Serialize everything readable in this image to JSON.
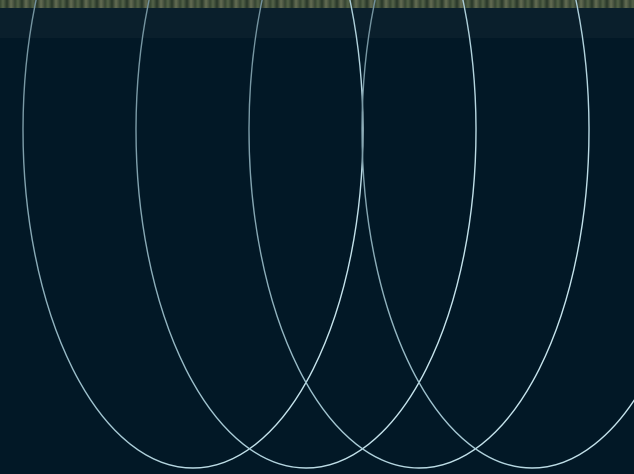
{
  "colors": {
    "background": "#021826",
    "header_band": "#0a1f2c",
    "ring_stroke_light": "#c8ecf5",
    "ring_stroke_dim": "#6f8c98"
  },
  "decoration": {
    "ring_icon_names": [
      "ellipse-ring",
      "ellipse-ring",
      "ellipse-ring",
      "ellipse-ring"
    ]
  }
}
